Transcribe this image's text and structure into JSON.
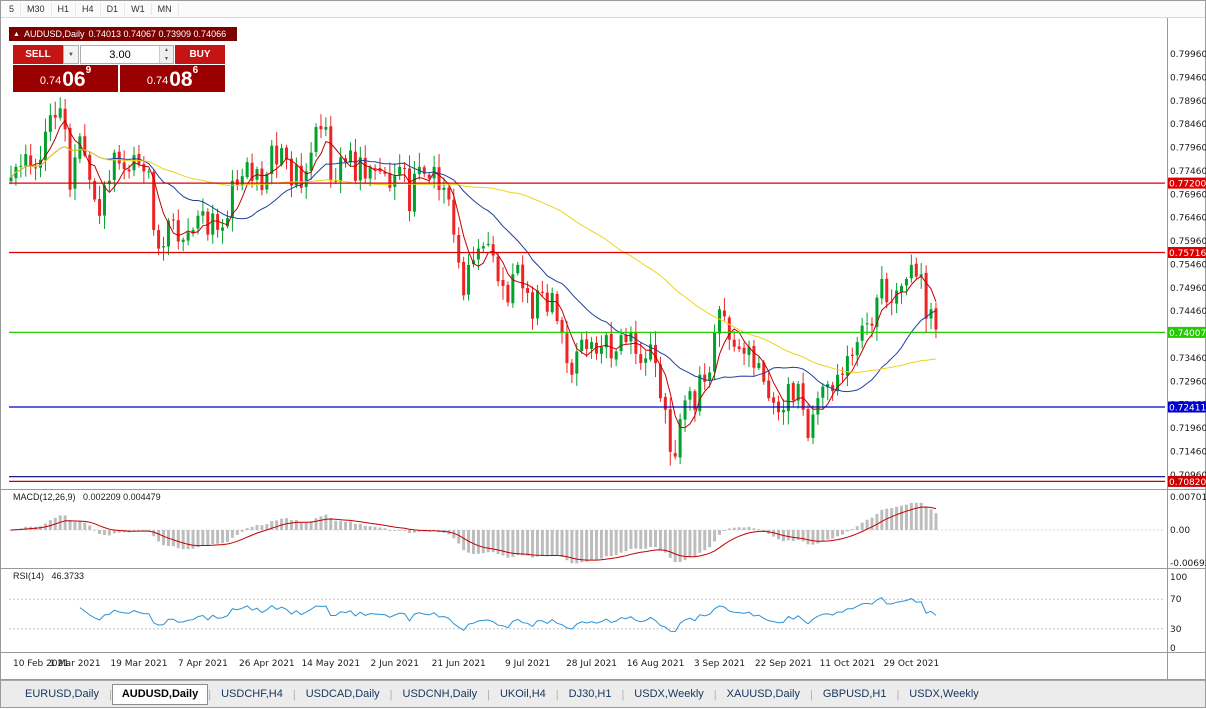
{
  "toolbar": {
    "timeframes": [
      "5",
      "M30",
      "H1",
      "H4",
      "D1",
      "W1",
      "MN"
    ]
  },
  "chart_header": {
    "symbol": "AUDUSD,Daily",
    "ohlc": "0.74013 0.74067 0.73909 0.74066"
  },
  "trade_panel": {
    "sell_label": "SELL",
    "buy_label": "BUY",
    "lot_value": "3.00",
    "sell_price": {
      "base": "0.74",
      "big": "06",
      "sup": "9"
    },
    "buy_price": {
      "base": "0.74",
      "big": "08",
      "sup": "6"
    }
  },
  "chart_data": {
    "type": "candlestick",
    "symbol": "AUDUSD",
    "timeframe": "Daily",
    "current_ohlc": {
      "open": "0.74013",
      "high": "0.74067",
      "low": "0.73909",
      "close": "0.74066"
    },
    "price_range": {
      "min": 0.707,
      "max": 0.8024
    },
    "candle_up_color": "#00a12c",
    "candle_down_color": "#ee2424",
    "price_axis_labels": [
      "0.79960",
      "0.79460",
      "0.78960",
      "0.78460",
      "0.77960",
      "0.77460",
      "0.76960",
      "0.76460",
      "0.75960",
      "0.75460",
      "0.74960",
      "0.74460",
      "0.73960",
      "0.73460",
      "0.72960",
      "0.72460",
      "0.71960",
      "0.71460",
      "0.70960"
    ],
    "closes": [
      0.7732,
      0.7755,
      0.7757,
      0.7782,
      0.7756,
      0.7752,
      0.777,
      0.783,
      0.7865,
      0.786,
      0.788,
      0.7835,
      0.7706,
      0.7775,
      0.782,
      0.7779,
      0.7727,
      0.7685,
      0.765,
      0.7715,
      0.7725,
      0.7785,
      0.7762,
      0.775,
      0.7745,
      0.778,
      0.776,
      0.7745,
      0.7745,
      0.762,
      0.758,
      0.7585,
      0.764,
      0.764,
      0.7595,
      0.7599,
      0.7615,
      0.762,
      0.765,
      0.766,
      0.761,
      0.7655,
      0.762,
      0.7625,
      0.7645,
      0.7725,
      0.7715,
      0.7735,
      0.7765,
      0.7725,
      0.775,
      0.7705,
      0.774,
      0.78,
      0.776,
      0.7795,
      0.777,
      0.7715,
      0.776,
      0.771,
      0.7745,
      0.7785,
      0.784,
      0.7835,
      0.784,
      0.7725,
      0.7725,
      0.7775,
      0.7765,
      0.779,
      0.7725,
      0.7775,
      0.773,
      0.7755,
      0.775,
      0.7745,
      0.774,
      0.771,
      0.7735,
      0.7755,
      0.775,
      0.766,
      0.774,
      0.7755,
      0.774,
      0.773,
      0.7755,
      0.7705,
      0.771,
      0.7685,
      0.761,
      0.755,
      0.748,
      0.7545,
      0.7555,
      0.758,
      0.7585,
      0.759,
      0.7565,
      0.751,
      0.75,
      0.7465,
      0.7525,
      0.7545,
      0.7495,
      0.7485,
      0.743,
      0.749,
      0.7485,
      0.7445,
      0.7485,
      0.7425,
      0.74,
      0.7335,
      0.731,
      0.736,
      0.7385,
      0.7365,
      0.738,
      0.7355,
      0.737,
      0.7395,
      0.7345,
      0.736,
      0.7395,
      0.738,
      0.74,
      0.7355,
      0.7335,
      0.7345,
      0.7375,
      0.7335,
      0.726,
      0.7235,
      0.7145,
      0.7135,
      0.7215,
      0.7255,
      0.7275,
      0.7235,
      0.731,
      0.7295,
      0.7315,
      0.74,
      0.745,
      0.7435,
      0.7385,
      0.737,
      0.7365,
      0.7355,
      0.737,
      0.7325,
      0.7335,
      0.7295,
      0.726,
      0.725,
      0.723,
      0.7235,
      0.729,
      0.7255,
      0.729,
      0.7235,
      0.7175,
      0.7225,
      0.726,
      0.7285,
      0.729,
      0.7275,
      0.731,
      0.731,
      0.735,
      0.735,
      0.738,
      0.7415,
      0.742,
      0.7415,
      0.7475,
      0.7515,
      0.7465,
      0.7465,
      0.749,
      0.75,
      0.7515,
      0.7545,
      0.752,
      0.7525,
      0.743,
      0.745,
      0.7407
    ],
    "moving_averages": [
      {
        "period": 5,
        "color": "#c00000"
      },
      {
        "period": 20,
        "color": "#20409a"
      },
      {
        "period": 60,
        "color": "#eed31c"
      }
    ],
    "horizontal_lines": [
      {
        "price": 0.772,
        "color": "#dd0000",
        "label": "0.77200"
      },
      {
        "price": 0.75716,
        "color": "#dd0000",
        "label": "0.75716"
      },
      {
        "price": 0.74007,
        "color": "#22cc00",
        "label": "0.74007"
      },
      {
        "price": 0.72411,
        "color": "#0000cc",
        "label": "0.72411"
      },
      {
        "price": 0.7092,
        "color": "#000080",
        "label": ""
      },
      {
        "price": 0.7082,
        "color": "#cc0000",
        "label": "0.70820"
      }
    ],
    "date_axis": [
      {
        "i": 0,
        "label": "10 Feb 2021"
      },
      {
        "i": 13,
        "label": "1 Mar 2021"
      },
      {
        "i": 26,
        "label": "19 Mar 2021"
      },
      {
        "i": 39,
        "label": "7 Apr 2021"
      },
      {
        "i": 52,
        "label": "26 Apr 2021"
      },
      {
        "i": 65,
        "label": "14 May 2021"
      },
      {
        "i": 78,
        "label": "2 Jun 2021"
      },
      {
        "i": 91,
        "label": "21 Jun 2021"
      },
      {
        "i": 105,
        "label": "9 Jul 2021"
      },
      {
        "i": 118,
        "label": "28 Jul 2021"
      },
      {
        "i": 131,
        "label": "16 Aug 2021"
      },
      {
        "i": 144,
        "label": "3 Sep 2021"
      },
      {
        "i": 157,
        "label": "22 Sep 2021"
      },
      {
        "i": 170,
        "label": "11 Oct 2021"
      },
      {
        "i": 183,
        "label": "29 Oct 2021"
      }
    ],
    "macd": {
      "label": "MACD(12,26,9)",
      "values": "0.002209 0.004479",
      "fast": 12,
      "slow": 26,
      "signal": 9,
      "axis_labels": [
        "0.00701",
        "0.00",
        "-0.00692"
      ],
      "histogram_color": "#bdbdbd",
      "signal_color": "#c00000"
    },
    "rsi": {
      "label": "RSI(14)",
      "value": "46.3733",
      "period": 14,
      "axis_labels": [
        "100",
        "70",
        "30",
        "0"
      ],
      "levels": [
        70,
        30
      ],
      "line_color": "#2a93d5"
    }
  },
  "tabs": [
    {
      "label": "EURUSD,Daily",
      "active": false
    },
    {
      "label": "AUDUSD,Daily",
      "active": true
    },
    {
      "label": "USDCHF,H4",
      "active": false
    },
    {
      "label": "USDCAD,Daily",
      "active": false
    },
    {
      "label": "USDCNH,Daily",
      "active": false
    },
    {
      "label": "UKOil,H4",
      "active": false
    },
    {
      "label": "DJ30,H1",
      "active": false
    },
    {
      "label": "USDX,Weekly",
      "active": false
    },
    {
      "label": "XAUUSD,Daily",
      "active": false
    },
    {
      "label": "GBPUSD,H1",
      "active": false
    },
    {
      "label": "USDX,Weekly",
      "active": false
    }
  ]
}
